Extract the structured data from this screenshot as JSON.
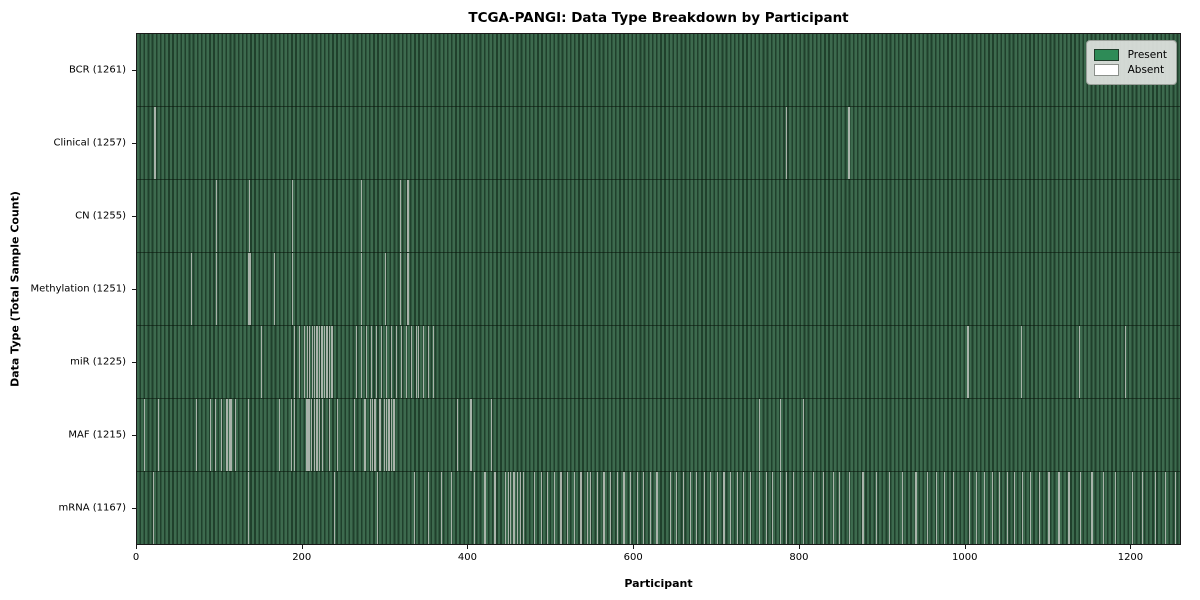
{
  "chart_data": {
    "type": "heatmap",
    "title": "TCGA-PANGI: Data Type Breakdown by Participant",
    "xlabel": "Participant",
    "ylabel": "Data Type (Total Sample Count)",
    "n_participants": 1261,
    "x_ticks": [
      0,
      200,
      400,
      600,
      800,
      1000,
      1200
    ],
    "grid": false,
    "legend_position": "upper right",
    "legend": [
      {
        "label": "Present",
        "color": "#2e8b57"
      },
      {
        "label": "Absent",
        "color": "#ffffff"
      }
    ],
    "colors": {
      "cell_light": "#3d6a4e",
      "cell_edge": "#20402c",
      "absent_line": "#a9b3aa",
      "present_swatch_border": "#1f3c2a",
      "absent_swatch_border": "#8a8f8a",
      "axis": "#1a1a1a"
    },
    "rows": [
      {
        "data_type": "BCR",
        "label": "BCR (1261)",
        "present_count": 1261,
        "absent_count": 0,
        "absent_participants": []
      },
      {
        "data_type": "Clinical",
        "label": "Clinical (1257)",
        "present_count": 1257,
        "absent_count": 4,
        "absent_participants": [
          20,
          21,
          785,
          860
        ]
      },
      {
        "data_type": "CN",
        "label": "CN (1255)",
        "present_count": 1255,
        "absent_count": 6,
        "absent_participants": [
          95,
          135,
          187,
          271,
          318,
          327
        ]
      },
      {
        "data_type": "Methylation",
        "label": "Methylation (1251)",
        "present_count": 1251,
        "absent_count": 10,
        "absent_participants": [
          65,
          95,
          134,
          136,
          166,
          187,
          271,
          300,
          318,
          327
        ]
      },
      {
        "data_type": "miR",
        "label": "miR (1225)",
        "present_count": 1225,
        "absent_count": 36,
        "absent_participants": [
          150,
          190,
          196,
          202,
          205,
          208,
          211,
          214,
          217,
          220,
          223,
          226,
          229,
          232,
          235,
          265,
          271,
          277,
          283,
          289,
          295,
          301,
          307,
          313,
          319,
          325,
          331,
          337,
          340,
          346,
          352,
          358,
          1004,
          1069,
          1139,
          1194
        ]
      },
      {
        "data_type": "MAF",
        "label": "MAF (1215)",
        "present_count": 1215,
        "absent_count": 46,
        "absent_participants": [
          8,
          25,
          71,
          88,
          94,
          101,
          107,
          109,
          111,
          113,
          118,
          134,
          172,
          186,
          190,
          204,
          206,
          208,
          210,
          214,
          216,
          218,
          220,
          224,
          232,
          242,
          262,
          275,
          282,
          284,
          286,
          288,
          293,
          299,
          301,
          303,
          305,
          307,
          309,
          311,
          387,
          403,
          428,
          752,
          777,
          805
        ]
      },
      {
        "data_type": "mRNA",
        "label": "mRNA (1167)",
        "present_count": 1167,
        "absent_count": 94,
        "absent_participants": [
          19,
          134,
          238,
          290,
          335,
          352,
          367,
          380,
          407,
          420,
          432,
          445,
          448,
          451,
          455,
          459,
          463,
          467,
          480,
          488,
          496,
          504,
          512,
          520,
          528,
          536,
          544,
          548,
          556,
          564,
          572,
          580,
          588,
          596,
          604,
          612,
          620,
          628,
          644,
          652,
          660,
          668,
          676,
          685,
          693,
          701,
          709,
          717,
          725,
          733,
          741,
          752,
          760,
          768,
          777,
          785,
          793,
          805,
          817,
          829,
          841,
          849,
          861,
          877,
          893,
          909,
          925,
          941,
          955,
          966,
          976,
          986,
          1006,
          1014,
          1024,
          1034,
          1042,
          1052,
          1060,
          1070,
          1080,
          1090,
          1102,
          1114,
          1126,
          1140,
          1154,
          1168,
          1182,
          1203,
          1215,
          1231,
          1243,
          1255
        ]
      }
    ]
  }
}
